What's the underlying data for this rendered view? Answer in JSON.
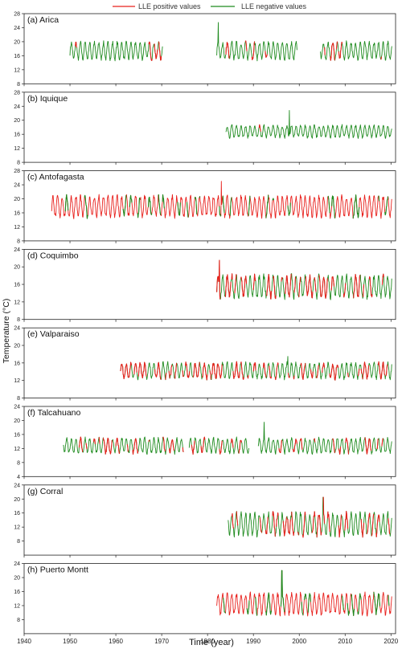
{
  "legend": {
    "positive_label": "LLE positive values",
    "negative_label": "LLE negative values",
    "positive_color": "#e8201c",
    "negative_color": "#1f8b1f"
  },
  "ylabel": "Temperature (°C)",
  "xlabel": "Time (year)",
  "xlim": [
    1940,
    2021
  ],
  "x_ticks": [
    1940,
    1950,
    1960,
    1970,
    1980,
    1990,
    2000,
    2010,
    2020
  ],
  "chart_data": [
    {
      "type": "line",
      "title": "(a) Arica",
      "ylim": [
        8,
        28
      ],
      "y_ticks": [
        8,
        12,
        16,
        20,
        24,
        28
      ],
      "segments": [
        [
          1950.0,
          1970.2
        ],
        [
          1982.0,
          1999.5
        ],
        [
          2004.6,
          2020.2
        ]
      ],
      "mean": 17.4,
      "amplitude": 2.3,
      "spike": {
        "x": 1982.3,
        "y": 25.5
      },
      "positive_fraction": 0.18,
      "series": [
        {
          "name": "LLE positive values",
          "color": "#e8201c"
        },
        {
          "name": "LLE negative values",
          "color": "#1f8b1f"
        }
      ]
    },
    {
      "type": "line",
      "title": "(b) Iquique",
      "ylim": [
        8,
        28
      ],
      "y_ticks": [
        8,
        12,
        16,
        20,
        24,
        28
      ],
      "segments": [
        [
          1984.0,
          2020.2
        ]
      ],
      "mean": 16.8,
      "amplitude": 1.6,
      "spike": {
        "x": 1997.8,
        "y": 22.8
      },
      "positive_fraction": 0.02,
      "series": [
        {
          "name": "LLE positive values",
          "color": "#e8201c"
        },
        {
          "name": "LLE negative values",
          "color": "#1f8b1f"
        }
      ]
    },
    {
      "type": "line",
      "title": "(c) Antofagasta",
      "ylim": [
        8,
        28
      ],
      "y_ticks": [
        8,
        12,
        16,
        20,
        24,
        28
      ],
      "segments": [
        [
          1946.0,
          2020.2
        ]
      ],
      "mean": 17.8,
      "amplitude": 2.8,
      "spike": {
        "x": 1983.0,
        "y": 25.0
      },
      "positive_fraction": 0.85,
      "series": [
        {
          "name": "LLE positive values",
          "color": "#e8201c"
        },
        {
          "name": "LLE negative values",
          "color": "#1f8b1f"
        }
      ]
    },
    {
      "type": "line",
      "title": "(d) Coquimbo",
      "ylim": [
        8,
        24
      ],
      "y_ticks": [
        8,
        12,
        16,
        20,
        24
      ],
      "segments": [
        [
          1982.0,
          2020.2
        ]
      ],
      "mean": 15.5,
      "amplitude": 2.4,
      "spike": {
        "x": 1982.6,
        "y": 21.5
      },
      "positive_fraction": 0.35,
      "series": [
        {
          "name": "LLE positive values",
          "color": "#e8201c"
        },
        {
          "name": "LLE negative values",
          "color": "#1f8b1f"
        }
      ]
    },
    {
      "type": "line",
      "title": "(e) Valparaiso",
      "ylim": [
        8,
        24
      ],
      "y_ticks": [
        8,
        12,
        16,
        20,
        24
      ],
      "segments": [
        [
          1961.0,
          2020.2
        ]
      ],
      "mean": 14.2,
      "amplitude": 1.7,
      "spike": {
        "x": 1997.5,
        "y": 17.5
      },
      "positive_fraction": 0.5,
      "series": [
        {
          "name": "LLE positive values",
          "color": "#e8201c"
        },
        {
          "name": "LLE negative values",
          "color": "#1f8b1f"
        }
      ]
    },
    {
      "type": "line",
      "title": "(f) Talcahuano",
      "ylim": [
        4,
        24
      ],
      "y_ticks": [
        4,
        8,
        12,
        16,
        20,
        24
      ],
      "segments": [
        [
          1948.5,
          1974.8
        ],
        [
          1976.0,
          1989.0
        ],
        [
          1991.0,
          2020.2
        ]
      ],
      "mean": 12.8,
      "amplitude": 2.0,
      "spike": {
        "x": 1992.3,
        "y": 19.5
      },
      "positive_fraction": 0.3,
      "series": [
        {
          "name": "LLE positive values",
          "color": "#e8201c"
        },
        {
          "name": "LLE negative values",
          "color": "#1f8b1f"
        }
      ]
    },
    {
      "type": "line",
      "title": "(g) Corral",
      "ylim": [
        4,
        24
      ],
      "y_ticks": [
        8,
        12,
        16,
        20,
        24
      ],
      "segments": [
        [
          1984.5,
          2020.2
        ]
      ],
      "mean": 12.8,
      "amplitude": 3.0,
      "spike": {
        "x": 2005.2,
        "y": 20.5
      },
      "positive_fraction": 0.35,
      "series": [
        {
          "name": "LLE positive values",
          "color": "#e8201c"
        },
        {
          "name": "LLE negative values",
          "color": "#1f8b1f"
        }
      ]
    },
    {
      "type": "line",
      "title": "(h) Puerto Montt",
      "ylim": [
        4,
        24
      ],
      "y_ticks": [
        8,
        12,
        16,
        20,
        24
      ],
      "segments": [
        [
          1982.0,
          2020.2
        ]
      ],
      "mean": 12.5,
      "amplitude": 2.8,
      "spike": {
        "x": 1996.2,
        "y": 22.0
      },
      "positive_fraction": 0.7,
      "series": [
        {
          "name": "LLE positive values",
          "color": "#e8201c"
        },
        {
          "name": "LLE negative values",
          "color": "#1f8b1f"
        }
      ]
    }
  ]
}
